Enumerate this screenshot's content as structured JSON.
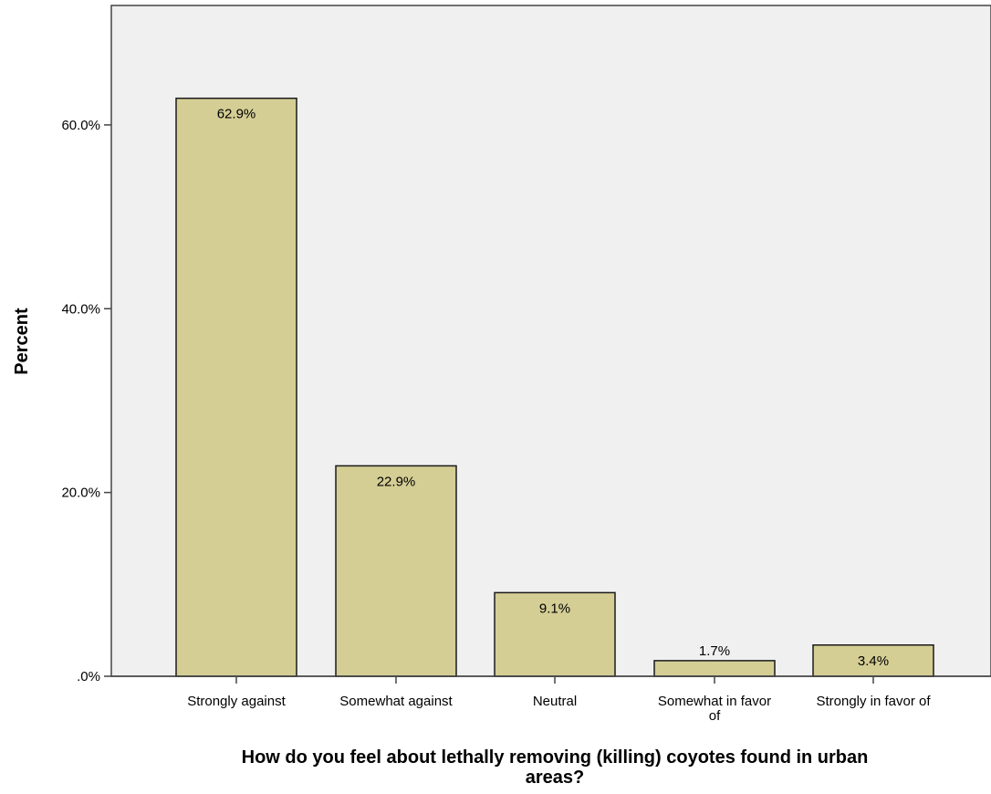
{
  "chart_data": {
    "type": "bar",
    "title": "",
    "xlabel": "How do you feel about lethally removing (killing) coyotes found in urban areas?",
    "ylabel": "Percent",
    "categories": [
      "Strongly against",
      "Somewhat against",
      "Neutral",
      "Somewhat in favor of",
      "Strongly in favor of"
    ],
    "values": [
      62.9,
      22.9,
      9.1,
      1.7,
      3.4
    ],
    "data_labels": [
      "62.9%",
      "22.9%",
      "9.1%",
      "1.7%",
      "3.4%"
    ],
    "ylim": [
      0,
      73
    ],
    "yticks": [
      0,
      20,
      40,
      60
    ],
    "ytick_labels": [
      ".0%",
      "20.0%",
      "40.0%",
      "60.0%"
    ],
    "grid": false,
    "legend": "none",
    "colors": {
      "bar_fill": "#d4ce95",
      "bar_stroke": "#1a1a1a",
      "plot_background": "#f0f0f0",
      "axis": "#444444",
      "text": "#000000"
    }
  }
}
